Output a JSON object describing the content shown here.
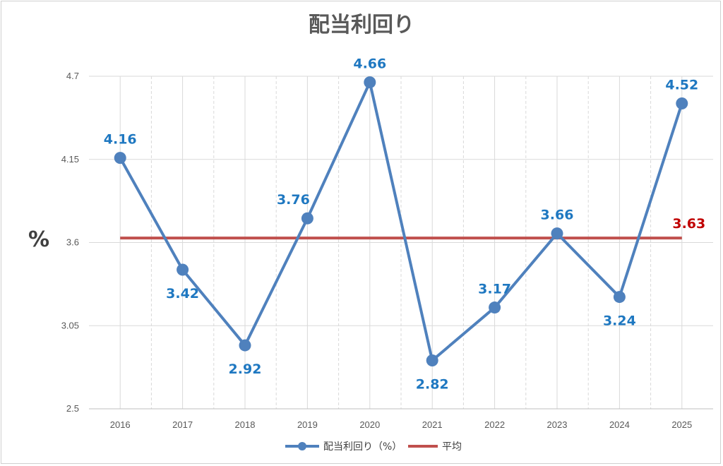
{
  "chart_data": {
    "type": "line",
    "title": "配当利回り",
    "ylabel": "%",
    "xlabel": "",
    "categories": [
      "2016",
      "2017",
      "2018",
      "2019",
      "2020",
      "2021",
      "2022",
      "2023",
      "2024",
      "2025"
    ],
    "yticks": [
      "2.5",
      "3.05",
      "3.6",
      "4.15",
      "4.7"
    ],
    "ylim": [
      2.5,
      4.7
    ],
    "grid": true,
    "legend_position": "bottom",
    "series": [
      {
        "name": "配当利回り（%）",
        "color": "#4f81bd",
        "label_color": "#1f78c1",
        "values": [
          4.16,
          3.42,
          2.92,
          3.76,
          4.66,
          2.82,
          3.17,
          3.66,
          3.24,
          4.52
        ],
        "labels": [
          "4.16",
          "3.42",
          "2.92",
          "3.76",
          "4.66",
          "2.82",
          "3.17",
          "3.66",
          "3.24",
          "4.52"
        ]
      },
      {
        "name": "平均",
        "color": "#c0504d",
        "label_color": "#c00000",
        "value": 3.63,
        "label": "3.63"
      }
    ]
  }
}
